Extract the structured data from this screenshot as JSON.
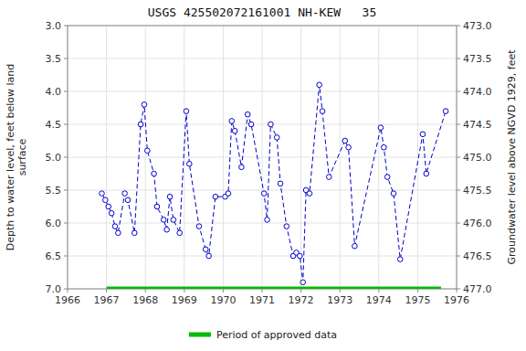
{
  "chart_data": {
    "type": "line",
    "title": "USGS 425502072161001 NH-KEW   35",
    "y_label": "Depth to water level, feet below land\nsurface",
    "y2_label": "Groundwater level above NGVD 1929, feet",
    "xlim": [
      1966,
      1976
    ],
    "xticks": [
      1966,
      1967,
      1968,
      1969,
      1970,
      1971,
      1972,
      1973,
      1974,
      1975,
      1976
    ],
    "ylim": [
      7.0,
      3.0
    ],
    "yticks": [
      {
        "value": 3.0,
        "label": "3.0"
      },
      3.5,
      {
        "value": 4.0,
        "label": "4.0"
      },
      4.5,
      {
        "value": 5.0,
        "label": "5.0"
      },
      5.5,
      {
        "value": 6.0,
        "label": "6.0"
      },
      6.5,
      {
        "value": 7.0,
        "label": "7.0"
      }
    ],
    "y2lim": [
      477.0,
      473.0
    ],
    "y2ticks": [
      {
        "value": 477.0,
        "label": "477.0"
      },
      476.5,
      {
        "value": 476.0,
        "label": "476.0"
      },
      475.5,
      {
        "value": 475.0,
        "label": "475.0"
      },
      474.5,
      {
        "value": 474.0,
        "label": "474.0"
      },
      473.5,
      {
        "value": 473.0,
        "label": "473.0"
      }
    ],
    "grid": true,
    "legend": "bottom",
    "series": [
      {
        "color": "#0000cc",
        "line_style": "dashed",
        "marker": "circle",
        "x": [
          1966.88,
          1966.97,
          1967.05,
          1967.13,
          1967.22,
          1967.3,
          1967.47,
          1967.55,
          1967.72,
          1967.88,
          1967.97,
          1968.05,
          1968.22,
          1968.3,
          1968.47,
          1968.55,
          1968.63,
          1968.72,
          1968.88,
          1969.05,
          1969.13,
          1969.38,
          1969.55,
          1969.63,
          1969.8,
          1970.05,
          1970.13,
          1970.22,
          1970.3,
          1970.47,
          1970.63,
          1970.72,
          1971.05,
          1971.13,
          1971.22,
          1971.38,
          1971.47,
          1971.63,
          1971.8,
          1971.88,
          1971.97,
          1972.05,
          1972.13,
          1972.22,
          1972.47,
          1972.55,
          1972.72,
          1973.13,
          1973.22,
          1973.38,
          1974.05,
          1974.13,
          1974.22,
          1974.38,
          1974.55,
          1975.13,
          1975.22,
          1975.72
        ],
        "values": [
          5.55,
          5.65,
          5.75,
          5.85,
          6.05,
          6.15,
          5.55,
          5.65,
          6.15,
          4.5,
          4.2,
          4.9,
          5.25,
          5.75,
          5.95,
          6.1,
          5.6,
          5.95,
          6.15,
          4.3,
          5.1,
          6.05,
          6.4,
          6.5,
          5.6,
          5.6,
          5.55,
          4.45,
          4.6,
          5.15,
          4.35,
          4.5,
          5.55,
          5.95,
          4.5,
          4.7,
          5.4,
          6.05,
          6.5,
          6.45,
          6.5,
          6.9,
          5.5,
          5.55,
          3.9,
          4.3,
          5.3,
          4.75,
          4.85,
          6.35,
          4.55,
          4.85,
          5.3,
          5.55,
          6.55,
          4.65,
          5.25,
          4.3
        ]
      },
      {
        "name": "Period of approved data",
        "type": "span",
        "color": "#00bb00",
        "line_style": "solid",
        "x": [
          1967.0,
          1975.6
        ],
        "values": [
          7.0,
          7.0
        ]
      }
    ]
  }
}
